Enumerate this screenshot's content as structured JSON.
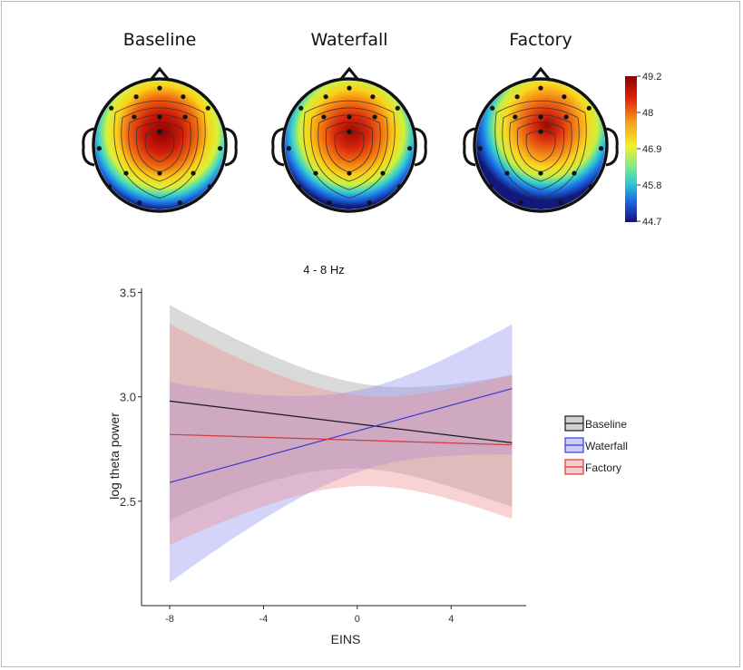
{
  "topomaps": {
    "titles": [
      "Baseline",
      "Waterfall",
      "Factory"
    ],
    "colorbar": {
      "ticks": [
        "49.2",
        "48",
        "46.9",
        "45.8",
        "44.7"
      ],
      "min": 44.7,
      "max": 49.2
    }
  },
  "chart_data": {
    "type": "line",
    "title": "4 - 8 Hz",
    "xlabel": "EINS",
    "ylabel": "log theta power",
    "xlim": [
      -9.2,
      7.2
    ],
    "ylim": [
      2.0,
      3.52
    ],
    "x_ticks": [
      "-8",
      "-4",
      "0",
      "4"
    ],
    "y_ticks": [
      "2.5",
      "3.0",
      "3.5"
    ],
    "x": [
      -8,
      6.6
    ],
    "series": [
      {
        "name": "Baseline",
        "color": "#1a1a1a",
        "band_color": "#9a9a9a",
        "values": [
          2.98,
          2.78
        ],
        "lower": [
          2.41,
          2.39
        ],
        "upper": [
          3.44,
          3.19
        ]
      },
      {
        "name": "Waterfall",
        "color": "#3b3bd4",
        "band_color": "#8f8ff5",
        "values": [
          2.59,
          3.04
        ],
        "lower": [
          2.11,
          2.64
        ],
        "upper": [
          3.07,
          3.43
        ]
      },
      {
        "name": "Factory",
        "color": "#d23a3a",
        "band_color": "#f08c8c",
        "values": [
          2.82,
          2.77
        ],
        "lower": [
          2.29,
          2.32
        ],
        "upper": [
          3.35,
          3.2
        ]
      }
    ],
    "legend": "right"
  }
}
